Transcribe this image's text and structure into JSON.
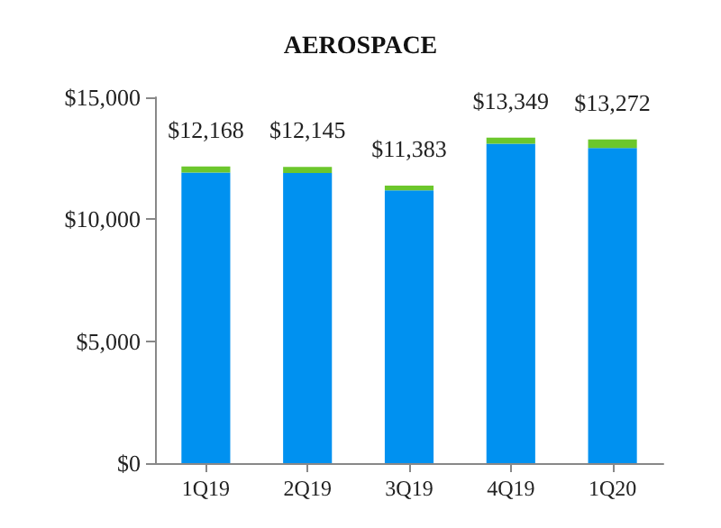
{
  "chart_data": {
    "type": "bar",
    "title": "AEROSPACE",
    "categories": [
      "1Q19",
      "2Q19",
      "3Q19",
      "4Q19",
      "1Q20"
    ],
    "stacked": true,
    "series": [
      {
        "color": "#0091f0",
        "values": [
          11918,
          11895,
          11183,
          13099,
          12922
        ]
      },
      {
        "color": "#6cc72c",
        "values": [
          250,
          250,
          200,
          250,
          350
        ]
      }
    ],
    "totals": [
      "$12,168",
      "$12,145",
      "$11,383",
      "$13,349",
      "$13,272"
    ],
    "ylim": [
      0,
      15000
    ],
    "yticks": [
      {
        "value": 0,
        "label": "$0"
      },
      {
        "value": 5000,
        "label": "$5,000"
      },
      {
        "value": 10000,
        "label": "$10,000"
      },
      {
        "value": 15000,
        "label": "$15,000"
      }
    ],
    "grid": false
  }
}
